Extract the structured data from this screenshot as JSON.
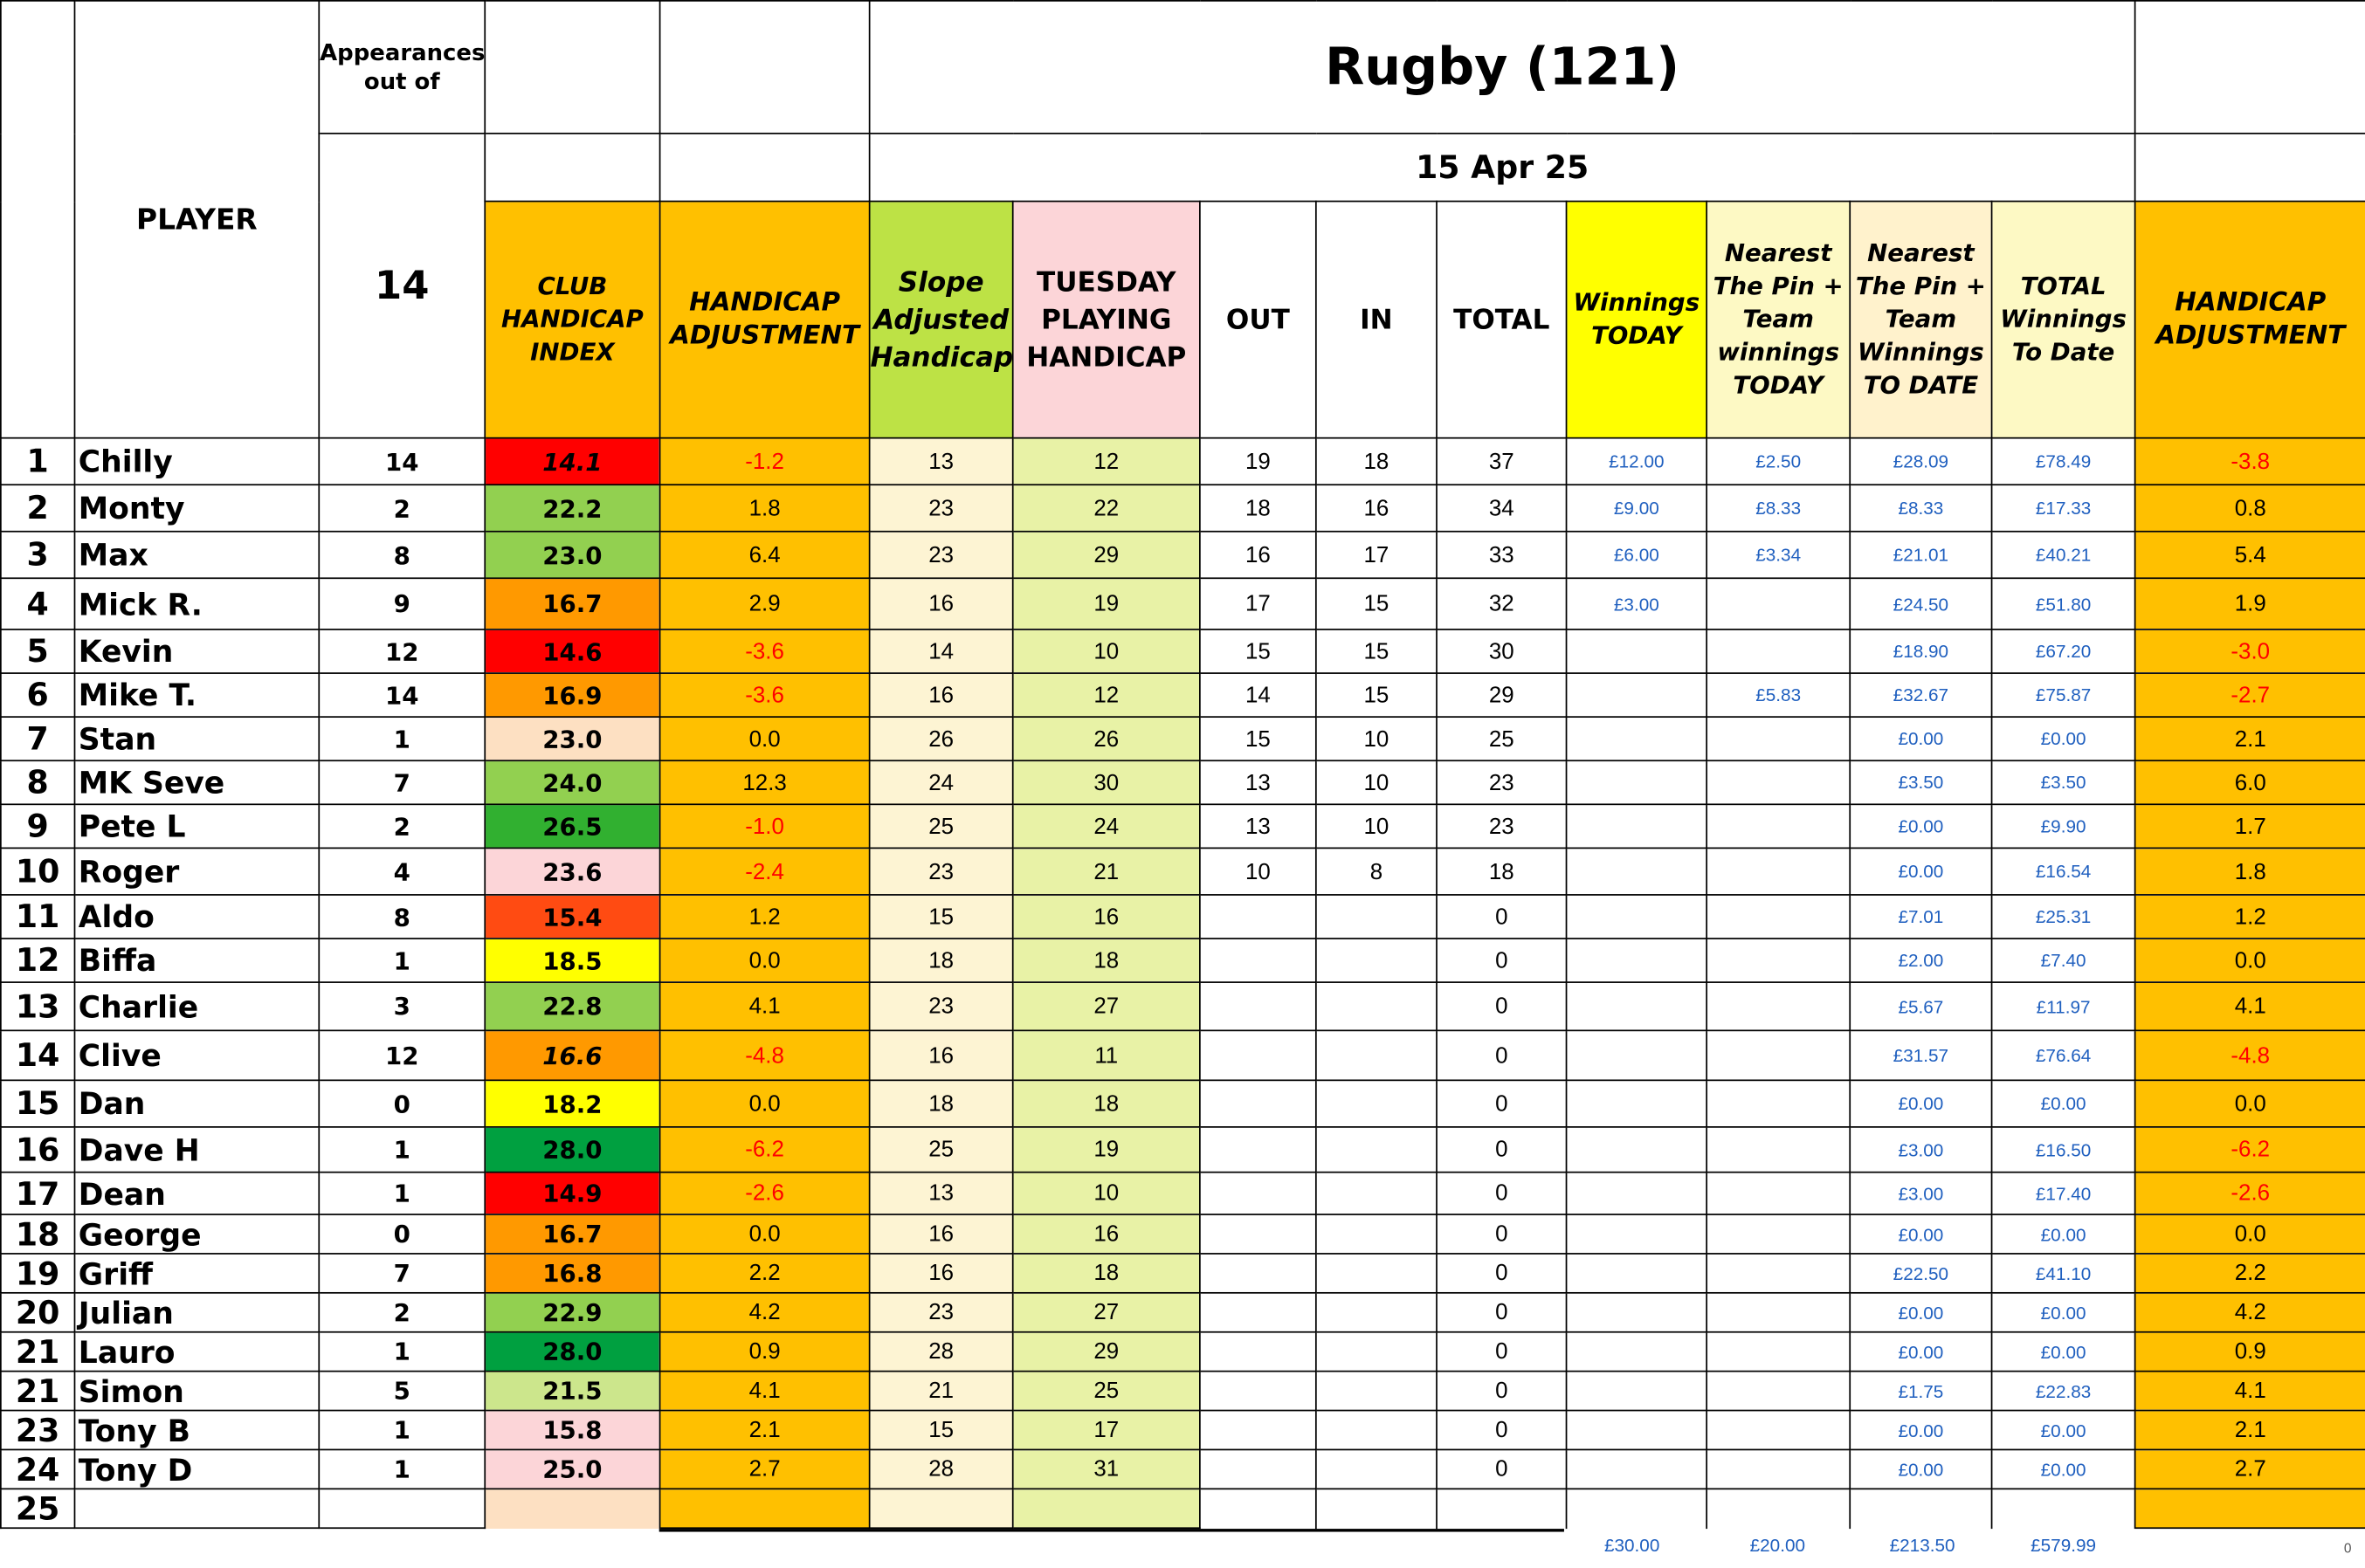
{
  "header": {
    "appearances_label": "Appearances out of",
    "title": "Rugby (121)",
    "date": "15 Apr 25",
    "appearances_count": "14",
    "player_label": "PLAYER",
    "columns": {
      "club_handicap_index": "CLUB HANDICAP INDEX",
      "handicap_adjustment": "HANDICAP ADJUSTMENT",
      "slope_adjusted": "Slope Adjusted Handicap",
      "tuesday_playing": "TUESDAY PLAYING HANDICAP",
      "out": "OUT",
      "in": "IN",
      "total": "TOTAL",
      "winnings_today": "Winnings TODAY",
      "ntp_today": "Nearest The Pin + Team winnings TODAY",
      "ntp_to_date": "Nearest The Pin + Team Winnings TO DATE",
      "total_winnings": "TOTAL Winnings To Date",
      "handicap_adjustment_2": "HANDICAP ADJUSTMENT"
    }
  },
  "colors": {
    "orange": "#ffc000",
    "index_red": "#ff0000",
    "index_red_orange": "#ff4b12",
    "index_orange": "#ff9900",
    "index_yellow": "#ffff00",
    "index_green_light": "#cce68c",
    "index_green": "#92d050",
    "index_green_mid": "#31b030",
    "index_green_dark": "#00a040",
    "index_pink": "#fcd5d8",
    "index_peach": "#fde0c2",
    "money_text": "#1f5fbf",
    "negative_text": "#ff0000"
  },
  "rows": [
    {
      "idx": "1",
      "name": "Chilly",
      "apps": "14",
      "club": "14.1",
      "club_color": "#ff0000",
      "club_italic": true,
      "adj": "-1.2",
      "slope": "13",
      "tues": "12",
      "out": "19",
      "in": "18",
      "total": "37",
      "win_today": "£12.00",
      "ntp_today": "£2.50",
      "ntp_to_date": "£28.09",
      "total_win": "£78.49",
      "adj2": "-3.8"
    },
    {
      "idx": "2",
      "name": "Monty",
      "apps": "2",
      "club": "22.2",
      "club_color": "#92d050",
      "club_italic": false,
      "adj": "1.8",
      "slope": "23",
      "tues": "22",
      "out": "18",
      "in": "16",
      "total": "34",
      "win_today": "£9.00",
      "ntp_today": "£8.33",
      "ntp_to_date": "£8.33",
      "total_win": "£17.33",
      "adj2": "0.8"
    },
    {
      "idx": "3",
      "name": "Max",
      "apps": "8",
      "club": "23.0",
      "club_color": "#92d050",
      "club_italic": false,
      "adj": "6.4",
      "slope": "23",
      "tues": "29",
      "out": "16",
      "in": "17",
      "total": "33",
      "win_today": "£6.00",
      "ntp_today": "£3.34",
      "ntp_to_date": "£21.01",
      "total_win": "£40.21",
      "adj2": "5.4"
    },
    {
      "idx": "4",
      "name": "Mick R.",
      "apps": "9",
      "club": "16.7",
      "club_color": "#ff9900",
      "club_italic": false,
      "adj": "2.9",
      "slope": "16",
      "tues": "19",
      "out": "17",
      "in": "15",
      "total": "32",
      "win_today": "£3.00",
      "ntp_today": "",
      "ntp_to_date": "£24.50",
      "total_win": "£51.80",
      "adj2": "1.9"
    },
    {
      "idx": "5",
      "name": "Kevin",
      "apps": "12",
      "club": "14.6",
      "club_color": "#ff0000",
      "club_italic": false,
      "adj": "-3.6",
      "slope": "14",
      "tues": "10",
      "out": "15",
      "in": "15",
      "total": "30",
      "win_today": "",
      "ntp_today": "",
      "ntp_to_date": "£18.90",
      "total_win": "£67.20",
      "adj2": "-3.0"
    },
    {
      "idx": "6",
      "name": "Mike T.",
      "apps": "14",
      "club": "16.9",
      "club_color": "#ff9900",
      "club_italic": false,
      "adj": "-3.6",
      "slope": "16",
      "tues": "12",
      "out": "14",
      "in": "15",
      "total": "29",
      "win_today": "",
      "ntp_today": "£5.83",
      "ntp_to_date": "£32.67",
      "total_win": "£75.87",
      "adj2": "-2.7"
    },
    {
      "idx": "7",
      "name": "Stan",
      "apps": "1",
      "club": "23.0",
      "club_color": "#fde0c2",
      "club_italic": false,
      "adj": "0.0",
      "slope": "26",
      "tues": "26",
      "out": "15",
      "in": "10",
      "total": "25",
      "win_today": "",
      "ntp_today": "",
      "ntp_to_date": "£0.00",
      "total_win": "£0.00",
      "adj2": "2.1"
    },
    {
      "idx": "8",
      "name": "MK Seve",
      "apps": "7",
      "club": "24.0",
      "club_color": "#92d050",
      "club_italic": false,
      "adj": "12.3",
      "slope": "24",
      "tues": "30",
      "out": "13",
      "in": "10",
      "total": "23",
      "win_today": "",
      "ntp_today": "",
      "ntp_to_date": "£3.50",
      "total_win": "£3.50",
      "adj2": "6.0"
    },
    {
      "idx": "9",
      "name": "Pete L",
      "apps": "2",
      "club": "26.5",
      "club_color": "#31b030",
      "club_italic": false,
      "adj": "-1.0",
      "slope": "25",
      "tues": "24",
      "out": "13",
      "in": "10",
      "total": "23",
      "win_today": "",
      "ntp_today": "",
      "ntp_to_date": "£0.00",
      "total_win": "£9.90",
      "adj2": "1.7"
    },
    {
      "idx": "10",
      "name": "Roger",
      "apps": "4",
      "club": "23.6",
      "club_color": "#fcd5d8",
      "club_italic": false,
      "adj": "-2.4",
      "slope": "23",
      "tues": "21",
      "out": "10",
      "in": "8",
      "total": "18",
      "win_today": "",
      "ntp_today": "",
      "ntp_to_date": "£0.00",
      "total_win": "£16.54",
      "adj2": "1.8"
    },
    {
      "idx": "11",
      "name": "Aldo",
      "apps": "8",
      "club": "15.4",
      "club_color": "#ff4b12",
      "club_italic": false,
      "adj": "1.2",
      "slope": "15",
      "tues": "16",
      "out": "",
      "in": "",
      "total": "0",
      "win_today": "",
      "ntp_today": "",
      "ntp_to_date": "£7.01",
      "total_win": "£25.31",
      "adj2": "1.2"
    },
    {
      "idx": "12",
      "name": "Biffa",
      "apps": "1",
      "club": "18.5",
      "club_color": "#ffff00",
      "club_italic": false,
      "adj": "0.0",
      "slope": "18",
      "tues": "18",
      "out": "",
      "in": "",
      "total": "0",
      "win_today": "",
      "ntp_today": "",
      "ntp_to_date": "£2.00",
      "total_win": "£7.40",
      "adj2": "0.0"
    },
    {
      "idx": "13",
      "name": "Charlie",
      "apps": "3",
      "club": "22.8",
      "club_color": "#92d050",
      "club_italic": false,
      "adj": "4.1",
      "slope": "23",
      "tues": "27",
      "out": "",
      "in": "",
      "total": "0",
      "win_today": "",
      "ntp_today": "",
      "ntp_to_date": "£5.67",
      "total_win": "£11.97",
      "adj2": "4.1"
    },
    {
      "idx": "14",
      "name": "Clive",
      "apps": "12",
      "club": "16.6",
      "club_color": "#ff9900",
      "club_italic": true,
      "adj": "-4.8",
      "slope": "16",
      "tues": "11",
      "out": "",
      "in": "",
      "total": "0",
      "win_today": "",
      "ntp_today": "",
      "ntp_to_date": "£31.57",
      "total_win": "£76.64",
      "adj2": "-4.8"
    },
    {
      "idx": "15",
      "name": "Dan",
      "apps": "0",
      "club": "18.2",
      "club_color": "#ffff00",
      "club_italic": false,
      "adj": "0.0",
      "slope": "18",
      "tues": "18",
      "out": "",
      "in": "",
      "total": "0",
      "win_today": "",
      "ntp_today": "",
      "ntp_to_date": "£0.00",
      "total_win": "£0.00",
      "adj2": "0.0"
    },
    {
      "idx": "16",
      "name": "Dave H",
      "apps": "1",
      "club": "28.0",
      "club_color": "#00a040",
      "club_italic": false,
      "adj": "-6.2",
      "slope": "25",
      "tues": "19",
      "out": "",
      "in": "",
      "total": "0",
      "win_today": "",
      "ntp_today": "",
      "ntp_to_date": "£3.00",
      "total_win": "£16.50",
      "adj2": "-6.2"
    },
    {
      "idx": "17",
      "name": "Dean",
      "apps": "1",
      "club": "14.9",
      "club_color": "#ff0000",
      "club_italic": false,
      "adj": "-2.6",
      "slope": "13",
      "tues": "10",
      "out": "",
      "in": "",
      "total": "0",
      "win_today": "",
      "ntp_today": "",
      "ntp_to_date": "£3.00",
      "total_win": "£17.40",
      "adj2": "-2.6"
    },
    {
      "idx": "18",
      "name": "George",
      "apps": "0",
      "club": "16.7",
      "club_color": "#ff9900",
      "club_italic": false,
      "adj": "0.0",
      "slope": "16",
      "tues": "16",
      "out": "",
      "in": "",
      "total": "0",
      "win_today": "",
      "ntp_today": "",
      "ntp_to_date": "£0.00",
      "total_win": "£0.00",
      "adj2": "0.0"
    },
    {
      "idx": "19",
      "name": "Griff",
      "apps": "7",
      "club": "16.8",
      "club_color": "#ff9900",
      "club_italic": false,
      "adj": "2.2",
      "slope": "16",
      "tues": "18",
      "out": "",
      "in": "",
      "total": "0",
      "win_today": "",
      "ntp_today": "",
      "ntp_to_date": "£22.50",
      "total_win": "£41.10",
      "adj2": "2.2"
    },
    {
      "idx": "20",
      "name": "Julian",
      "apps": "2",
      "club": "22.9",
      "club_color": "#92d050",
      "club_italic": false,
      "adj": "4.2",
      "slope": "23",
      "tues": "27",
      "out": "",
      "in": "",
      "total": "0",
      "win_today": "",
      "ntp_today": "",
      "ntp_to_date": "£0.00",
      "total_win": "£0.00",
      "adj2": "4.2"
    },
    {
      "idx": "21",
      "name": "Lauro",
      "apps": "1",
      "club": "28.0",
      "club_color": "#00a040",
      "club_italic": false,
      "adj": "0.9",
      "slope": "28",
      "tues": "29",
      "out": "",
      "in": "",
      "total": "0",
      "win_today": "",
      "ntp_today": "",
      "ntp_to_date": "£0.00",
      "total_win": "£0.00",
      "adj2": "0.9"
    },
    {
      "idx": "21",
      "name": "Simon",
      "apps": "5",
      "club": "21.5",
      "club_color": "#cce68c",
      "club_italic": false,
      "adj": "4.1",
      "slope": "21",
      "tues": "25",
      "out": "",
      "in": "",
      "total": "0",
      "win_today": "",
      "ntp_today": "",
      "ntp_to_date": "£1.75",
      "total_win": "£22.83",
      "adj2": "4.1"
    },
    {
      "idx": "23",
      "name": "Tony B",
      "apps": "1",
      "club": "15.8",
      "club_color": "#fcd5d8",
      "club_italic": false,
      "adj": "2.1",
      "slope": "15",
      "tues": "17",
      "out": "",
      "in": "",
      "total": "0",
      "win_today": "",
      "ntp_today": "",
      "ntp_to_date": "£0.00",
      "total_win": "£0.00",
      "adj2": "2.1"
    },
    {
      "idx": "24",
      "name": "Tony D",
      "apps": "1",
      "club": "25.0",
      "club_color": "#fcd5d8",
      "club_italic": false,
      "adj": "2.7",
      "slope": "28",
      "tues": "31",
      "out": "",
      "in": "",
      "total": "0",
      "win_today": "",
      "ntp_today": "",
      "ntp_to_date": "£0.00",
      "total_win": "£0.00",
      "adj2": "2.7"
    },
    {
      "idx": "25",
      "name": "",
      "apps": "",
      "club": "",
      "club_color": "#fde0c2",
      "club_italic": false,
      "adj": "",
      "slope": "",
      "tues": "",
      "out": "",
      "in": "",
      "total": "",
      "win_today": "",
      "ntp_today": "",
      "ntp_to_date": "",
      "total_win": "",
      "adj2": ""
    }
  ],
  "totals": {
    "win_today": "£30.00",
    "ntp_today": "£20.00",
    "ntp_to_date": "£213.50",
    "total_win": "£579.99",
    "corner_mark": "0"
  }
}
